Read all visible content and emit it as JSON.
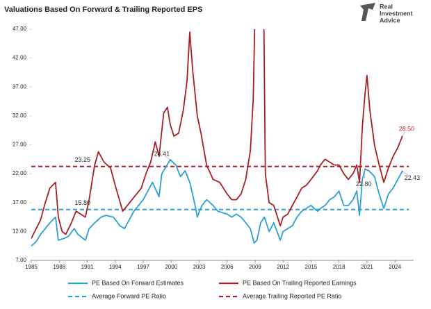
{
  "chart_data": {
    "type": "line",
    "title": "Valuations  Based On Forward & Trailing Reported EPS",
    "logo": [
      "Real",
      "Investment",
      "Advice"
    ],
    "xlim": [
      1985,
      2026
    ],
    "xticks": [
      1985,
      1988,
      1991,
      1994,
      1997,
      2000,
      2003,
      2006,
      2009,
      2012,
      2015,
      2018,
      2021,
      2024
    ],
    "ylim": [
      7,
      47
    ],
    "yticks": [
      {
        "value": 7,
        "label": "7.00"
      },
      {
        "value": 12,
        "label": "12.00"
      },
      {
        "value": 17,
        "label": "17.00"
      },
      {
        "value": 22,
        "label": "22.00"
      },
      {
        "value": 27,
        "label": "27.00"
      },
      {
        "value": 32,
        "label": "32.00"
      },
      {
        "value": 37,
        "label": "37.00"
      },
      {
        "value": 42,
        "label": "42.00"
      },
      {
        "value": 47,
        "label": "47.00"
      }
    ],
    "grid": false,
    "legend": "bottom",
    "series": [
      {
        "name": "PE Based On Forward Estimates",
        "color": "#2b9fd8",
        "x": [
          1985,
          1985.5,
          1986,
          1986.5,
          1987,
          1987.6,
          1987.9,
          1988.5,
          1989,
          1989.6,
          1990,
          1990.8,
          1991.2,
          1991.8,
          1992.5,
          1993,
          1993.8,
          1994.5,
          1995,
          1995.5,
          1996,
          1996.5,
          1997,
          1997.5,
          1998,
          1998.7,
          1999,
          1999.9,
          2000.5,
          2001,
          2001.5,
          2002,
          2002.5,
          2002.8,
          2003.3,
          2003.8,
          2004.5,
          2005,
          2006,
          2006.5,
          2007,
          2007.5,
          2008,
          2008.5,
          2008.9,
          2009.2,
          2009.6,
          2010,
          2010.5,
          2011,
          2011.7,
          2012,
          2012.5,
          2013,
          2013.5,
          2014,
          2014.5,
          2015,
          2015.7,
          2016,
          2016.5,
          2017,
          2017.5,
          2018,
          2018.5,
          2019,
          2019.5,
          2019.9,
          2020.2,
          2020.5,
          2020.8,
          2021.2,
          2021.8,
          2022.3,
          2022.8,
          2023.3,
          2023.8,
          2024.3,
          2024.8
        ],
        "values": [
          9.5,
          10.2,
          11.5,
          12.5,
          13.5,
          14.5,
          10.5,
          10.8,
          11.2,
          12.5,
          11.5,
          10.5,
          12.5,
          13.5,
          14.5,
          14.8,
          14.5,
          13.0,
          12.5,
          14.0,
          15.5,
          16.5,
          17.5,
          19.0,
          20.5,
          18.0,
          22.0,
          24.41,
          23.5,
          21.5,
          22.5,
          20.5,
          17.0,
          14.5,
          16.5,
          17.5,
          16.5,
          15.5,
          15.0,
          14.5,
          15.0,
          14.5,
          13.5,
          12.5,
          10.0,
          10.5,
          13.5,
          14.5,
          12.0,
          13.5,
          10.5,
          12.0,
          12.5,
          13.0,
          14.5,
          15.5,
          16.0,
          16.5,
          15.5,
          16.0,
          16.5,
          17.5,
          18.0,
          19.0,
          16.5,
          16.5,
          17.5,
          19.0,
          14.8,
          21.0,
          22.8,
          22.5,
          21.5,
          18.5,
          16.0,
          18.5,
          19.5,
          21.0,
          22.43
        ]
      },
      {
        "name": "PE Based On Trailing Reported Earnings",
        "color": "#a81e22",
        "x": [
          1985,
          1986,
          1986.5,
          1987,
          1987.6,
          1987.9,
          1988.3,
          1988.7,
          1989.3,
          1989.8,
          1990.3,
          1990.8,
          1991.2,
          1991.8,
          1992.2,
          1992.8,
          1993.5,
          1994,
          1994.8,
          1995.3,
          1995.8,
          1996.3,
          1996.8,
          1997.3,
          1997.8,
          1998.3,
          1998.7,
          1999.2,
          1999.6,
          1999.9,
          2000.3,
          2000.8,
          2001.3,
          2001.7,
          2002,
          2002.3,
          2002.8,
          2003.2,
          2003.8,
          2004.5,
          2005.2,
          2006,
          2006.5,
          2007,
          2007.5,
          2008,
          2008.5,
          2008.8,
          2008.95,
          2009.4,
          2009.95,
          2010.1,
          2010.5,
          2011,
          2011.7,
          2012,
          2012.5,
          2013,
          2013.5,
          2014,
          2014.5,
          2015,
          2015.7,
          2016,
          2016.5,
          2017,
          2017.5,
          2018,
          2018.5,
          2019,
          2019.5,
          2019.9,
          2020.2,
          2020.5,
          2020.8,
          2021,
          2021.3,
          2021.8,
          2022.3,
          2022.8,
          2023.3,
          2023.8,
          2024.3,
          2024.8
        ],
        "values": [
          10.8,
          14,
          17,
          19.5,
          20.5,
          14.5,
          12,
          11.5,
          13.5,
          15.5,
          15.0,
          14.5,
          17.5,
          23.5,
          25.8,
          24.0,
          23.0,
          20.0,
          15.5,
          16.5,
          17.5,
          18.5,
          19.5,
          22.0,
          24.0,
          27.5,
          25.0,
          32.5,
          33.5,
          30.5,
          28.5,
          29.0,
          33.0,
          38.0,
          46.5,
          40.0,
          32.0,
          29.0,
          23.5,
          21.0,
          20.5,
          18.5,
          17.5,
          17.5,
          18.5,
          21.0,
          26.0,
          35.0,
          47,
          null,
          47,
          22,
          17,
          16.5,
          13.0,
          14.5,
          15.0,
          16.5,
          18.0,
          19.5,
          20.0,
          21.0,
          22.5,
          23.5,
          24.5,
          24.0,
          23.5,
          23.5,
          22.0,
          21.0,
          22.0,
          23.5,
          20.5,
          30.0,
          36.0,
          39.0,
          33.0,
          27.0,
          23.5,
          20.5,
          23.0,
          25.0,
          26.5,
          28.5
        ]
      }
    ],
    "hlines": [
      {
        "name": "Average Forward PE Ratio",
        "color": "#2b9fd8",
        "value": 15.8,
        "value_label": "15.80"
      },
      {
        "name": "Average Trailing Reported PE Ratio",
        "color": "#a81e22",
        "value": 23.25,
        "value_label": "23.25"
      }
    ],
    "annotations": [
      {
        "x": 1999.9,
        "value": 24.41,
        "label": "24.41",
        "color": "#333333"
      },
      {
        "x": 2024.8,
        "value": 28.5,
        "label": "28.50",
        "color": "#c0272d"
      },
      {
        "x": 2024.8,
        "value": 22.43,
        "label": "22.43",
        "color": "#333333"
      },
      {
        "x": 2020.8,
        "value": 22.8,
        "label": "22.80",
        "color": "#333333"
      }
    ]
  }
}
